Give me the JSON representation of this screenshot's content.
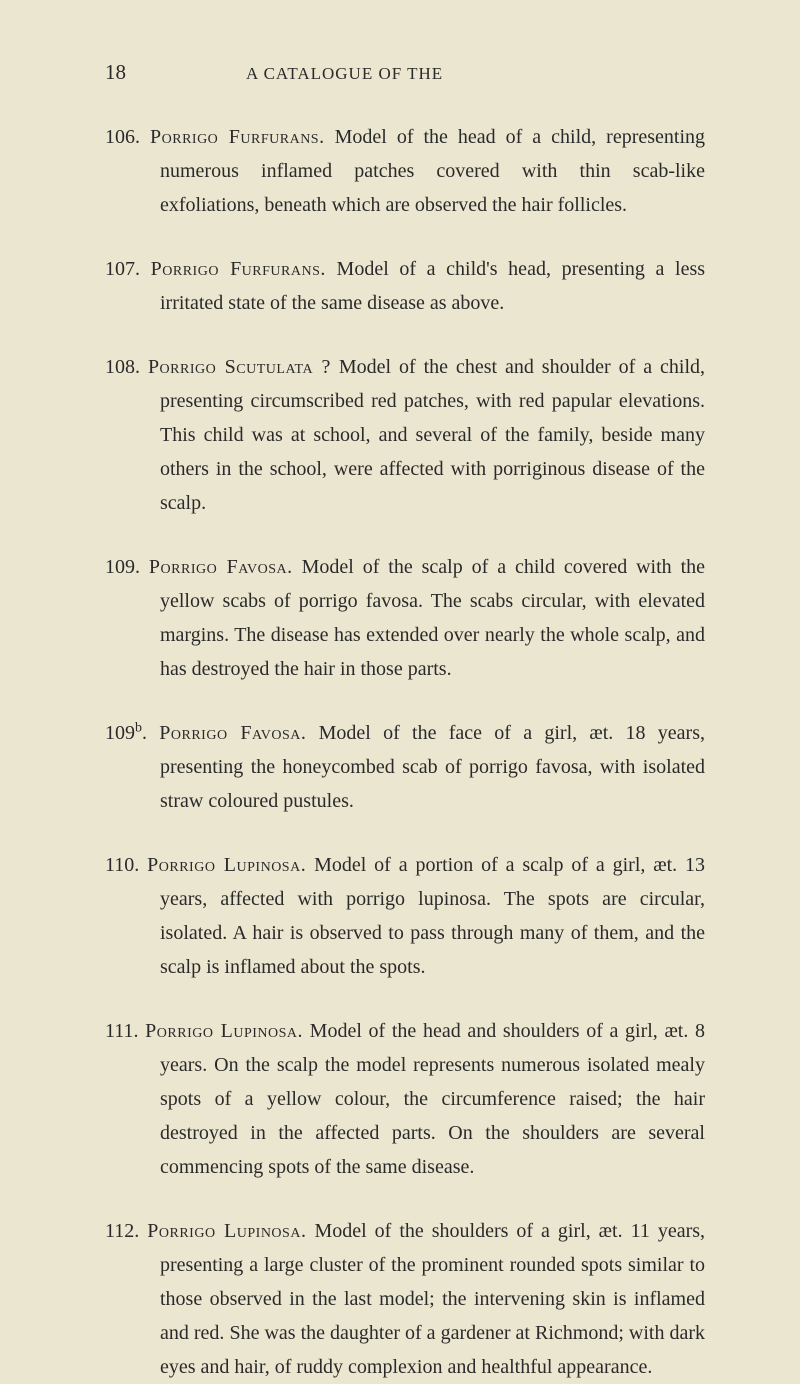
{
  "header": {
    "page_number": "18",
    "running_title": "A CATALOGUE OF THE"
  },
  "entries": [
    {
      "number": "106.",
      "title_caps": "Porrigo Furfurans.",
      "text": "Model of the head of a child, representing numerous inflamed patches covered with thin scab-like exfoliations, beneath which are observed the hair follicles."
    },
    {
      "number": "107.",
      "title_caps": "Porrigo Furfurans.",
      "text": "Model of a child's head, presenting a less irritated state of the same disease as above."
    },
    {
      "number": "108.",
      "title_caps": "Porrigo Scutulata ?",
      "text": "Model of the chest and shoulder of a child, presenting circumscribed red patches, with red papular elevations. This child was at school, and several of the family, beside many others in the school, were affected with porriginous disease of the scalp."
    },
    {
      "number": "109.",
      "title_caps": "Porrigo Favosa.",
      "text": "Model of the scalp of a child covered with the yellow scabs of porrigo favosa. The scabs circular, with elevated margins. The disease has extended over nearly the whole scalp, and has destroyed the hair in those parts."
    },
    {
      "number": "109",
      "number_sup": "b",
      "number_after": ".",
      "title_caps": "Porrigo Favosa.",
      "text": "Model of the face of a girl, æt. 18 years, presenting the honeycombed scab of porrigo favosa, with isolated straw coloured pustules."
    },
    {
      "number": "110.",
      "title_caps": "Porrigo Lupinosa.",
      "text": "Model of a portion of a scalp of a girl, æt. 13 years, affected with porrigo lupinosa. The spots are circular, isolated. A hair is observed to pass through many of them, and the scalp is inflamed about the spots."
    },
    {
      "number": "111.",
      "title_caps": "Porrigo Lupinosa.",
      "text": "Model of the head and shoulders of a girl, æt. 8 years. On the scalp the model represents numerous isolated mealy spots of a yellow colour, the circumference raised; the hair destroyed in the affected parts. On the shoulders are several commencing spots of the same disease."
    },
    {
      "number": "112.",
      "title_caps": "Porrigo Lupinosa.",
      "text": "Model of the shoulders of a girl, æt. 11 years, presenting a large cluster of the prominent rounded spots similar to those observed in the last model; the intervening skin is inflamed and red. She was the daughter of a gardener at Richmond; with dark eyes and hair, of ruddy complexion and healthful appearance."
    }
  ]
}
